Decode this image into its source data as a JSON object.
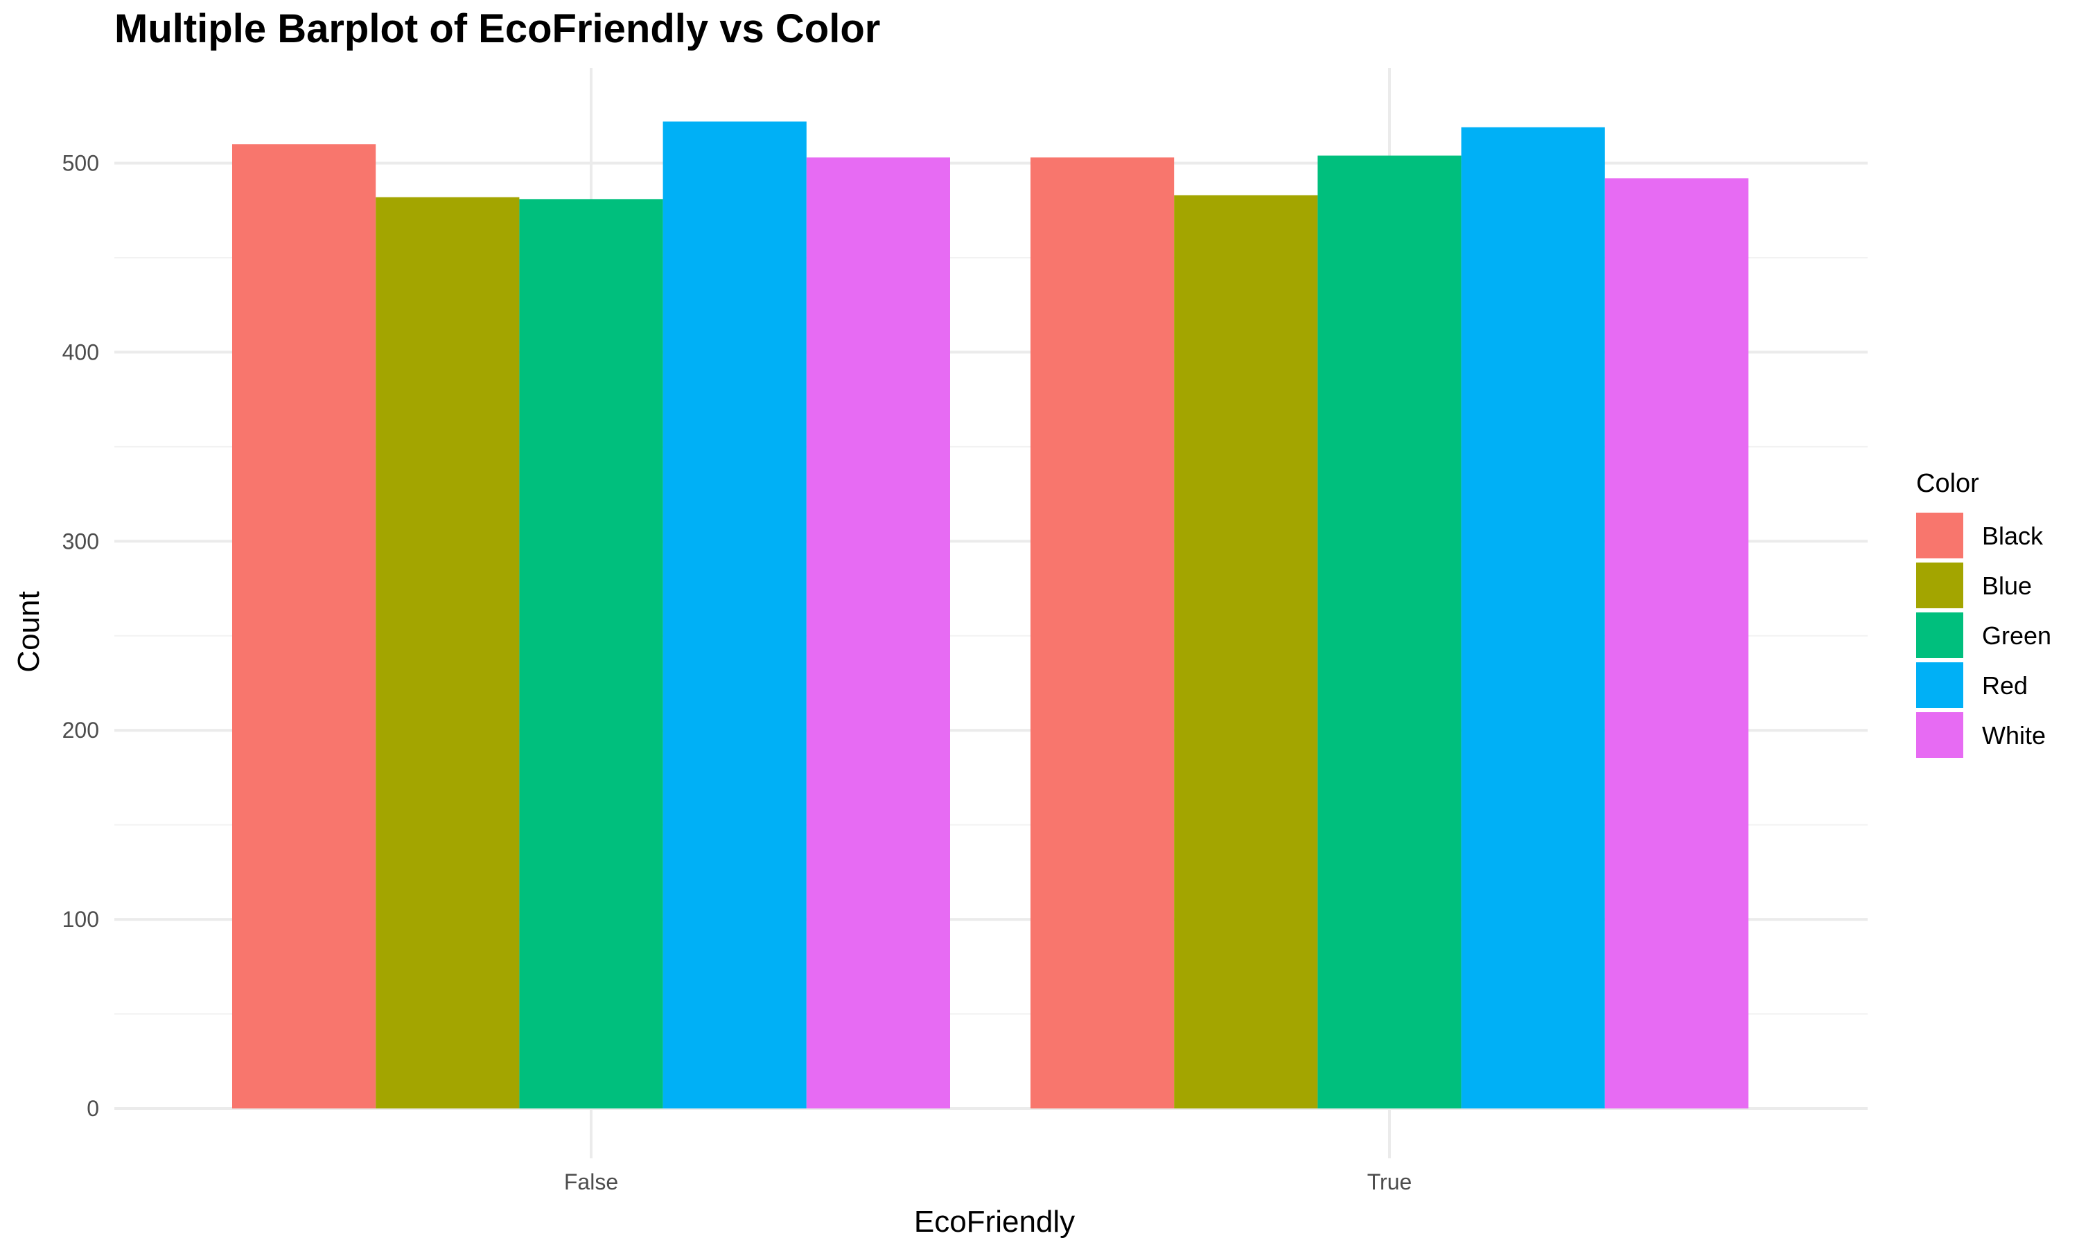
{
  "chart_data": {
    "type": "bar",
    "title": "Multiple Barplot of EcoFriendly vs Color",
    "xlabel": "EcoFriendly",
    "ylabel": "Count",
    "categories": [
      "False",
      "True"
    ],
    "series": [
      {
        "name": "Black",
        "color": "#F8766D",
        "values": [
          510,
          503
        ]
      },
      {
        "name": "Blue",
        "color": "#A3A500",
        "values": [
          482,
          483
        ]
      },
      {
        "name": "Green",
        "color": "#00BF7D",
        "values": [
          481,
          504
        ]
      },
      {
        "name": "Red",
        "color": "#00B0F6",
        "values": [
          522,
          519
        ]
      },
      {
        "name": "White",
        "color": "#E76BF3",
        "values": [
          503,
          492
        ]
      }
    ],
    "ylim": [
      0,
      550
    ],
    "yticks": [
      0,
      100,
      200,
      300,
      400,
      500
    ],
    "grid": true,
    "legend": {
      "title": "Color",
      "position": "right"
    }
  }
}
